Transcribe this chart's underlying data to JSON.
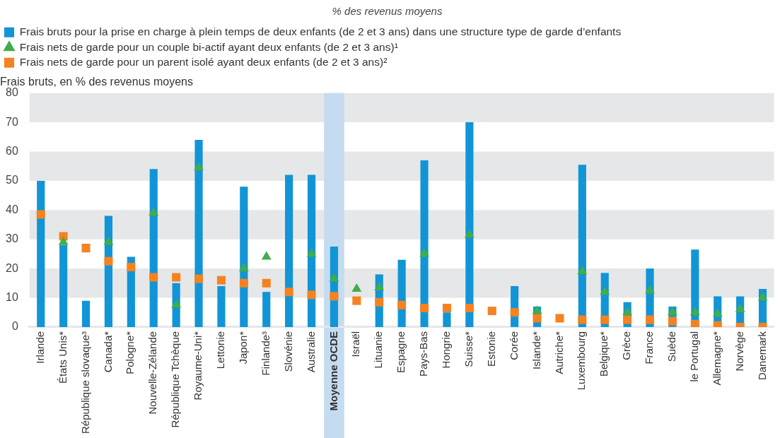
{
  "chart_data": {
    "type": "bar",
    "title": "% des revenus moyens",
    "ylabel": "Frais bruts, en % des revenus moyens",
    "categories": [
      "Irlande",
      "États Unis*",
      "République slovaque³",
      "Canada*",
      "Pologne*",
      "Nouvelle-Zélande",
      "République Tchèque",
      "Royaume-Uni*",
      "Lettonie",
      "Japon*",
      "Finlande³",
      "Slovénie",
      "Australie",
      "Moyenne OCDE",
      "Israël",
      "Lituanie",
      "Espagne",
      "Pays-Bas",
      "Hongrie",
      "Suisse*",
      "Estonie",
      "Corée",
      "Islande*",
      "Autriche*",
      "Luxembourg",
      "Belgique*",
      "Grèce",
      "France",
      "Suède",
      "le Portugal",
      "Allemagne*",
      "Norvège",
      "Danemark"
    ],
    "series": [
      {
        "name": "Frais bruts pour la prise en charge à plein temps de deux enfants (de 2 et 3 ans) dans une structure type de garde d’enfants",
        "color": "#1195d6",
        "values": [
          50,
          28,
          9,
          38,
          24,
          54,
          15,
          64,
          14,
          48,
          12,
          52,
          52,
          27.5,
          null,
          18,
          23,
          57,
          5,
          70,
          null,
          14,
          7,
          null,
          55.5,
          18.5,
          8.5,
          20,
          7,
          26.5,
          10.5,
          10.5,
          13
        ]
      },
      {
        "name": "Frais nets de garde pour un couple bi-actif ayant deux enfants (de 2 et 3 ans)¹",
        "type": "scatter",
        "marker": "triangle",
        "color": "#3fae49",
        "values": [
          null,
          29,
          null,
          29,
          null,
          39,
          7.5,
          54.5,
          null,
          20,
          24,
          null,
          25,
          16.5,
          13,
          13.5,
          null,
          25,
          null,
          31.5,
          null,
          null,
          5.5,
          null,
          19,
          12,
          5,
          12.5,
          5,
          5,
          4.5,
          6,
          10
        ]
      },
      {
        "name": "Frais nets de garde pour un parent isolé ayant deux enfants (de 2 et 3 ans)²",
        "type": "scatter",
        "marker": "square",
        "color": "#f58220",
        "values": [
          38.5,
          31,
          27,
          22.5,
          20.5,
          17,
          17,
          16.5,
          16,
          15,
          15,
          12,
          11,
          10.5,
          9,
          8.5,
          7.5,
          6.5,
          6.5,
          6.5,
          5.5,
          5,
          3,
          3,
          2.5,
          2.5,
          2.5,
          2.5,
          2,
          1,
          0.5,
          0,
          0
        ]
      }
    ],
    "bands": [
      {
        "axis": "x",
        "from": "Moyenne OCDE",
        "to": "Moyenne OCDE",
        "color": "#c5dcf0"
      },
      {
        "axis": "y",
        "from": 10,
        "to": 20,
        "color": "#e6e7e8"
      },
      {
        "axis": "y",
        "from": 30,
        "to": 40,
        "color": "#e6e7e8"
      },
      {
        "axis": "y",
        "from": 50,
        "to": 60,
        "color": "#e6e7e8"
      },
      {
        "axis": "y",
        "from": 70,
        "to": 80,
        "color": "#e6e7e8"
      }
    ],
    "ylim": [
      0,
      80
    ],
    "yticks": [
      0,
      10,
      20,
      30,
      40,
      50,
      60,
      70,
      80
    ],
    "legend": "top left"
  }
}
